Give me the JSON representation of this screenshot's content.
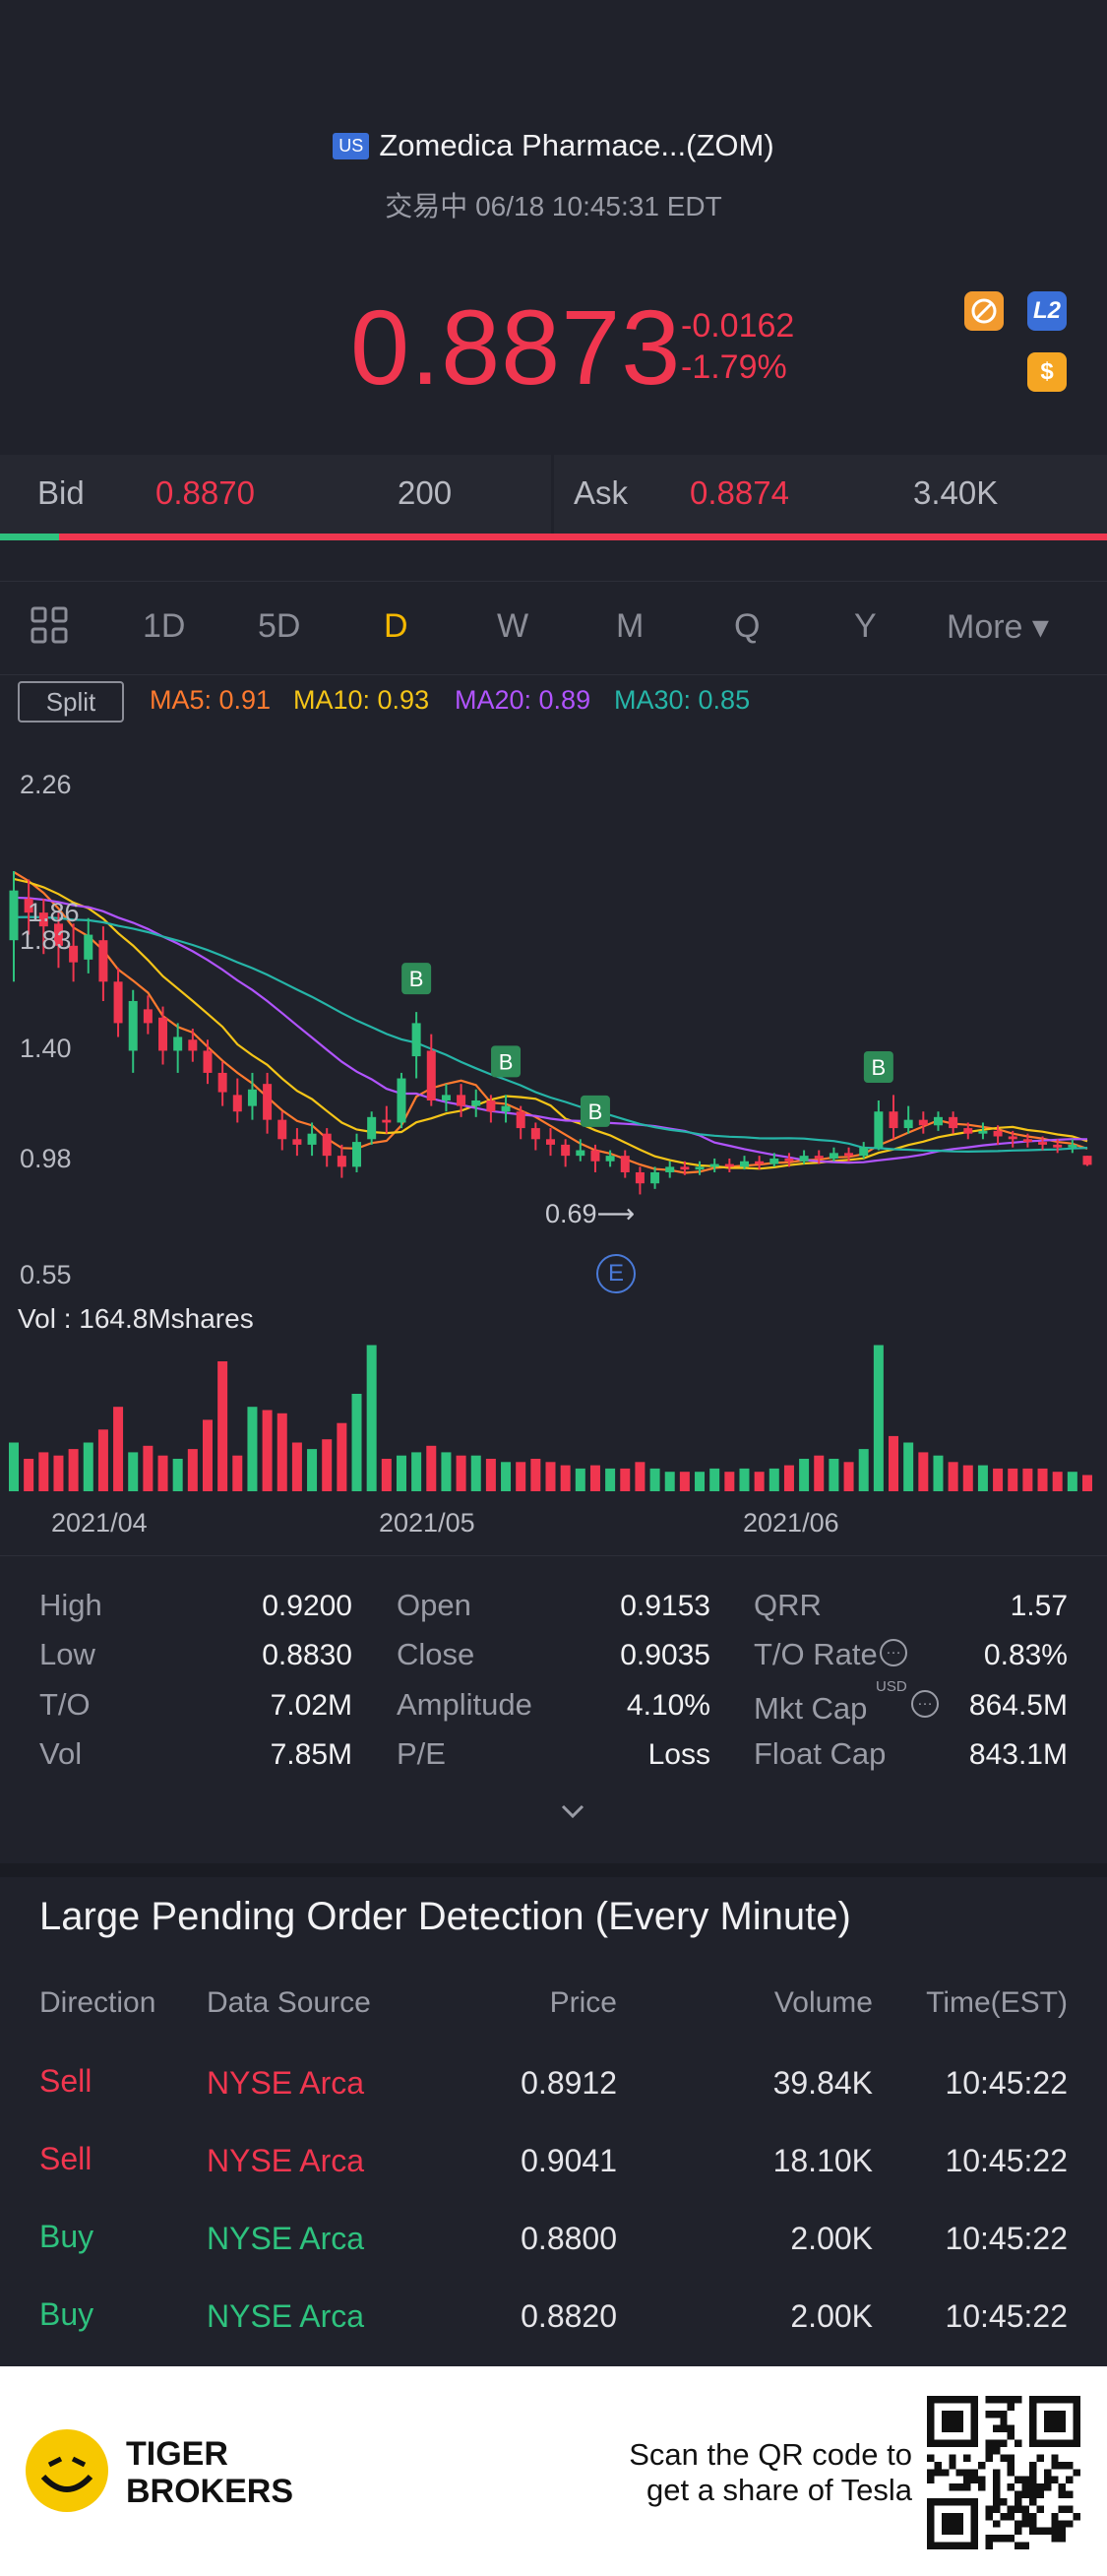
{
  "header": {
    "market_badge": "US",
    "title": "Zomedica Pharmace...(ZOM)",
    "status": "交易中 06/18 10:45:31 EDT",
    "price": "0.8873",
    "change_abs": "-0.0162",
    "change_pct": "-1.79%",
    "icons": [
      "no-sign-icon",
      "level2-icon",
      "dollar-icon"
    ],
    "l2_label": "L2",
    "dollar_label": "$"
  },
  "bidask": {
    "bid_label": "Bid",
    "bid_price": "0.8870",
    "bid_size": "200",
    "ask_label": "Ask",
    "ask_price": "0.8874",
    "ask_size": "3.40K",
    "bid_fraction": 0.053
  },
  "tabs": [
    "1D",
    "5D",
    "D",
    "W",
    "M",
    "Q",
    "Y",
    "More ▾"
  ],
  "active_tab": "D",
  "indicators": {
    "split_label": "Split",
    "ma5": "MA5: 0.91",
    "ma10": "MA10: 0.93",
    "ma20": "MA20: 0.89",
    "ma30": "MA30: 0.85",
    "colors": {
      "ma5": "#ff7a2f",
      "ma10": "#f5c518",
      "ma20": "#b154ff",
      "ma30": "#26b5a8"
    }
  },
  "chart_data": {
    "type": "candlestick",
    "y_ticks": [
      "2.26",
      "1.83",
      "1.40",
      "0.98",
      "0.55"
    ],
    "overlay_label": "1.86",
    "low_marker": "0.69⟶",
    "event_label": "E",
    "buy_marker_label": "B",
    "x_ticks": [
      "2021/04",
      "2021/05",
      "2021/06"
    ],
    "ylim": [
      0.55,
      2.26
    ],
    "candles": [
      [
        1.7,
        1.88,
        1.95,
        1.55
      ],
      [
        1.85,
        1.8,
        1.92,
        1.72
      ],
      [
        1.8,
        1.75,
        1.85,
        1.65
      ],
      [
        1.76,
        1.68,
        1.8,
        1.6
      ],
      [
        1.68,
        1.62,
        1.76,
        1.55
      ],
      [
        1.63,
        1.72,
        1.78,
        1.58
      ],
      [
        1.7,
        1.55,
        1.75,
        1.48
      ],
      [
        1.55,
        1.4,
        1.6,
        1.35
      ],
      [
        1.3,
        1.48,
        1.52,
        1.22
      ],
      [
        1.45,
        1.4,
        1.5,
        1.36
      ],
      [
        1.42,
        1.3,
        1.46,
        1.25
      ],
      [
        1.3,
        1.35,
        1.4,
        1.22
      ],
      [
        1.34,
        1.3,
        1.38,
        1.26
      ],
      [
        1.3,
        1.22,
        1.34,
        1.18
      ],
      [
        1.22,
        1.15,
        1.26,
        1.1
      ],
      [
        1.14,
        1.08,
        1.2,
        1.04
      ],
      [
        1.1,
        1.16,
        1.22,
        1.05
      ],
      [
        1.18,
        1.05,
        1.22,
        1.0
      ],
      [
        1.05,
        0.98,
        1.08,
        0.94
      ],
      [
        0.98,
        0.96,
        1.02,
        0.92
      ],
      [
        0.96,
        1.0,
        1.04,
        0.92
      ],
      [
        1.0,
        0.92,
        1.02,
        0.88
      ],
      [
        0.92,
        0.88,
        0.96,
        0.84
      ],
      [
        0.88,
        0.97,
        1.0,
        0.86
      ],
      [
        0.98,
        1.06,
        1.08,
        0.96
      ],
      [
        1.05,
        1.04,
        1.1,
        1.0
      ],
      [
        1.04,
        1.2,
        1.22,
        1.02
      ],
      [
        1.28,
        1.4,
        1.44,
        1.2
      ],
      [
        1.3,
        1.12,
        1.36,
        1.1
      ],
      [
        1.12,
        1.14,
        1.18,
        1.08
      ],
      [
        1.14,
        1.1,
        1.18,
        1.06
      ],
      [
        1.1,
        1.12,
        1.16,
        1.06
      ],
      [
        1.12,
        1.08,
        1.14,
        1.04
      ],
      [
        1.08,
        1.1,
        1.14,
        1.04
      ],
      [
        1.08,
        1.02,
        1.1,
        0.98
      ],
      [
        1.02,
        0.98,
        1.04,
        0.94
      ],
      [
        0.98,
        0.96,
        1.02,
        0.92
      ],
      [
        0.96,
        0.92,
        0.98,
        0.88
      ],
      [
        0.92,
        0.94,
        0.98,
        0.9
      ],
      [
        0.94,
        0.9,
        0.96,
        0.86
      ],
      [
        0.9,
        0.92,
        0.94,
        0.88
      ],
      [
        0.92,
        0.86,
        0.94,
        0.84
      ],
      [
        0.86,
        0.82,
        0.88,
        0.78
      ],
      [
        0.82,
        0.86,
        0.88,
        0.8
      ],
      [
        0.86,
        0.88,
        0.9,
        0.84
      ],
      [
        0.88,
        0.87,
        0.9,
        0.85
      ],
      [
        0.87,
        0.88,
        0.9,
        0.85
      ],
      [
        0.88,
        0.89,
        0.91,
        0.86
      ],
      [
        0.89,
        0.88,
        0.91,
        0.86
      ],
      [
        0.88,
        0.9,
        0.92,
        0.87
      ],
      [
        0.9,
        0.89,
        0.92,
        0.87
      ],
      [
        0.89,
        0.91,
        0.93,
        0.88
      ],
      [
        0.91,
        0.9,
        0.93,
        0.88
      ],
      [
        0.9,
        0.92,
        0.94,
        0.89
      ],
      [
        0.92,
        0.91,
        0.94,
        0.89
      ],
      [
        0.91,
        0.93,
        0.95,
        0.9
      ],
      [
        0.93,
        0.92,
        0.95,
        0.9
      ],
      [
        0.92,
        0.95,
        0.97,
        0.91
      ],
      [
        0.95,
        1.08,
        1.12,
        0.94
      ],
      [
        1.08,
        1.02,
        1.14,
        0.98
      ],
      [
        1.02,
        1.05,
        1.1,
        1.0
      ],
      [
        1.05,
        1.03,
        1.08,
        1.0
      ],
      [
        1.03,
        1.06,
        1.08,
        1.01
      ],
      [
        1.06,
        1.02,
        1.08,
        1.0
      ],
      [
        1.02,
        1.0,
        1.04,
        0.98
      ],
      [
        1.0,
        1.01,
        1.04,
        0.98
      ],
      [
        1.01,
        0.99,
        1.03,
        0.96
      ],
      [
        0.99,
        0.98,
        1.01,
        0.95
      ],
      [
        0.98,
        0.97,
        1.0,
        0.95
      ],
      [
        0.97,
        0.96,
        0.99,
        0.94
      ],
      [
        0.96,
        0.95,
        0.98,
        0.93
      ],
      [
        0.95,
        0.96,
        0.98,
        0.93
      ],
      [
        0.92,
        0.887,
        0.92,
        0.883
      ]
    ],
    "volumes": [
      30,
      20,
      24,
      22,
      26,
      30,
      38,
      52,
      24,
      28,
      22,
      20,
      26,
      44,
      80,
      22,
      52,
      50,
      48,
      30,
      26,
      32,
      42,
      60,
      90,
      20,
      22,
      24,
      28,
      24,
      22,
      22,
      20,
      18,
      18,
      20,
      18,
      16,
      14,
      16,
      14,
      14,
      18,
      14,
      12,
      12,
      12,
      14,
      12,
      14,
      12,
      14,
      16,
      20,
      22,
      20,
      18,
      26,
      90,
      34,
      30,
      24,
      22,
      18,
      16,
      16,
      14,
      14,
      14,
      14,
      12,
      12,
      10
    ],
    "vol_ylim": [
      0,
      100
    ],
    "vol_label": "Vol  : 164.8Mshares"
  },
  "stats": {
    "col1": [
      [
        "High",
        "0.9200"
      ],
      [
        "Low",
        "0.8830"
      ],
      [
        "T/O",
        "7.02M"
      ],
      [
        "Vol",
        "7.85M"
      ]
    ],
    "col2": [
      [
        "Open",
        "0.9153"
      ],
      [
        "Close",
        "0.9035"
      ],
      [
        "Amplitude",
        "4.10%"
      ],
      [
        "P/E",
        "Loss"
      ]
    ],
    "col3": [
      [
        "QRR",
        "1.57"
      ],
      [
        "T/O Rate",
        "0.83%"
      ],
      [
        "Mkt Cap",
        "864.5M"
      ],
      [
        "Float Cap",
        "843.1M"
      ]
    ],
    "usd_sup": "USD",
    "expand_icon": "chevron-down-icon"
  },
  "large_orders": {
    "title": "Large Pending Order Detection (Every Minute)",
    "headers": [
      "Direction",
      "Data Source",
      "Price",
      "Volume",
      "Time(EST)"
    ],
    "rows": [
      [
        "Sell",
        "NYSE Arca",
        "0.8912",
        "39.84K",
        "10:45:22"
      ],
      [
        "Sell",
        "NYSE Arca",
        "0.9041",
        "18.10K",
        "10:45:22"
      ],
      [
        "Buy",
        "NYSE Arca",
        "0.8800",
        "2.00K",
        "10:45:22"
      ],
      [
        "Buy",
        "NYSE Arca",
        "0.8820",
        "2.00K",
        "10:45:22"
      ]
    ]
  },
  "footer": {
    "brand_line1": "TIGER",
    "brand_line2": "BROKERS",
    "scan_line1": "Scan the QR code to",
    "scan_line2": "get a share of Tesla"
  }
}
